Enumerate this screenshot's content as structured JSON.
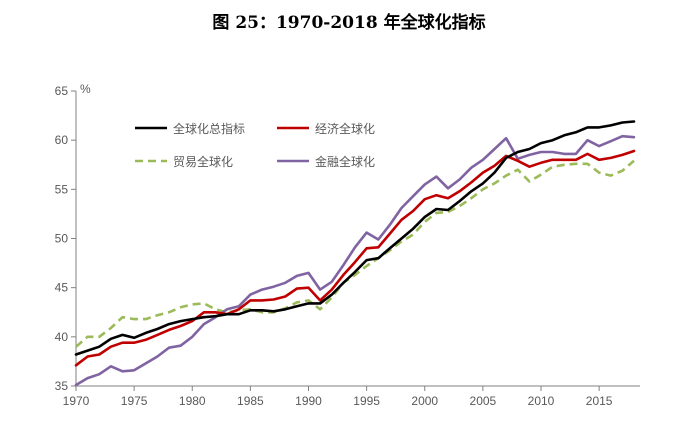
{
  "chart_data": {
    "type": "line",
    "title": "图 25：1970-2018 年全球化指标",
    "ylabel": "%",
    "xlabel": "",
    "xlim": [
      1970,
      2018
    ],
    "ylim": [
      35,
      65
    ],
    "x_ticks": [
      1970,
      1975,
      1980,
      1985,
      1990,
      1995,
      2000,
      2005,
      2010,
      2015
    ],
    "y_ticks": [
      35,
      40,
      45,
      50,
      55,
      60,
      65
    ],
    "x": [
      1970,
      1971,
      1972,
      1973,
      1974,
      1975,
      1976,
      1977,
      1978,
      1979,
      1980,
      1981,
      1982,
      1983,
      1984,
      1985,
      1986,
      1987,
      1988,
      1989,
      1990,
      1991,
      1992,
      1993,
      1994,
      1995,
      1996,
      1997,
      1998,
      1999,
      2000,
      2001,
      2002,
      2003,
      2004,
      2005,
      2006,
      2007,
      2008,
      2009,
      2010,
      2011,
      2012,
      2013,
      2014,
      2015,
      2016,
      2017,
      2018
    ],
    "series": [
      {
        "name": "全球化总指标",
        "color": "#000000",
        "dash": "solid",
        "values": [
          38.2,
          38.6,
          39.0,
          39.8,
          40.2,
          39.9,
          40.4,
          40.8,
          41.3,
          41.6,
          41.8,
          42.0,
          42.1,
          42.3,
          42.3,
          42.7,
          42.7,
          42.6,
          42.8,
          43.1,
          43.4,
          43.4,
          44.3,
          45.5,
          46.6,
          47.8,
          48.0,
          49.0,
          50.0,
          51.0,
          52.2,
          53.0,
          52.9,
          53.8,
          54.8,
          55.6,
          56.7,
          58.2,
          58.8,
          59.1,
          59.7,
          60.0,
          60.5,
          60.8,
          61.3,
          61.3,
          61.5,
          61.8,
          61.9
        ]
      },
      {
        "name": "经济全球化",
        "color": "#c00000",
        "dash": "solid",
        "values": [
          37.1,
          38.0,
          38.2,
          39.0,
          39.4,
          39.4,
          39.7,
          40.2,
          40.7,
          41.1,
          41.6,
          42.5,
          42.5,
          42.3,
          42.8,
          43.7,
          43.7,
          43.8,
          44.1,
          44.9,
          45.0,
          43.7,
          44.8,
          46.3,
          47.6,
          49.0,
          49.1,
          50.5,
          51.9,
          52.8,
          54.0,
          54.4,
          54.1,
          54.8,
          55.7,
          56.7,
          57.4,
          58.4,
          57.9,
          57.3,
          57.7,
          58.0,
          58.0,
          58.0,
          58.6,
          58.0,
          58.2,
          58.5,
          58.9
        ]
      },
      {
        "name": "贸易全球化",
        "color": "#9bbb59",
        "dash": "dashed",
        "values": [
          39.0,
          40.0,
          40.0,
          40.9,
          42.0,
          41.8,
          41.8,
          42.2,
          42.5,
          43.0,
          43.3,
          43.4,
          42.8,
          42.5,
          42.7,
          42.8,
          42.5,
          42.5,
          42.9,
          43.5,
          43.7,
          42.8,
          44.0,
          45.5,
          46.3,
          47.2,
          48.0,
          48.8,
          49.7,
          50.4,
          51.7,
          52.6,
          52.7,
          53.3,
          54.1,
          55.0,
          55.6,
          56.4,
          57.0,
          55.8,
          56.5,
          57.3,
          57.5,
          57.6,
          57.6,
          56.7,
          56.4,
          56.9,
          57.9
        ]
      },
      {
        "name": "金融全球化",
        "color": "#8064a2",
        "dash": "solid",
        "values": [
          35.1,
          35.8,
          36.2,
          37.0,
          36.5,
          36.6,
          37.3,
          38.0,
          38.9,
          39.1,
          40.0,
          41.3,
          42.0,
          42.8,
          43.1,
          44.3,
          44.8,
          45.1,
          45.5,
          46.2,
          46.5,
          44.8,
          45.6,
          47.3,
          49.1,
          50.6,
          49.9,
          51.4,
          53.1,
          54.3,
          55.5,
          56.3,
          55.1,
          56.0,
          57.2,
          58.0,
          59.1,
          60.2,
          58.1,
          58.5,
          58.8,
          58.8,
          58.6,
          58.6,
          60.0,
          59.4,
          59.9,
          60.4,
          60.3
        ]
      }
    ]
  }
}
